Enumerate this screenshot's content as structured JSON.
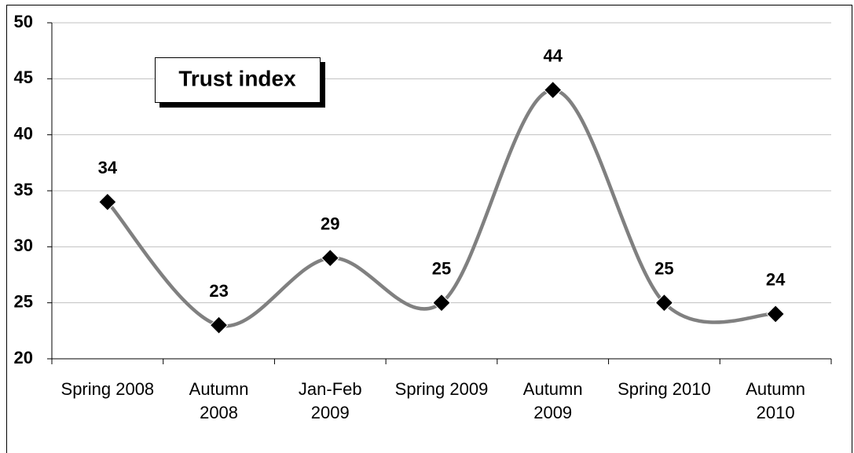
{
  "chart_data": {
    "type": "line",
    "title": "Trust index",
    "categories": [
      "Spring 2008",
      "Autumn 2008",
      "Jan-Feb 2009",
      "Spring 2009",
      "Autumn 2009",
      "Spring 2010",
      "Autumn 2010"
    ],
    "values": [
      34,
      23,
      29,
      25,
      44,
      25,
      24
    ],
    "color": "#808080",
    "smooth": true,
    "ylim": [
      20,
      50
    ],
    "yticks": [
      20,
      25,
      30,
      35,
      40,
      45,
      50
    ],
    "grid": true
  }
}
